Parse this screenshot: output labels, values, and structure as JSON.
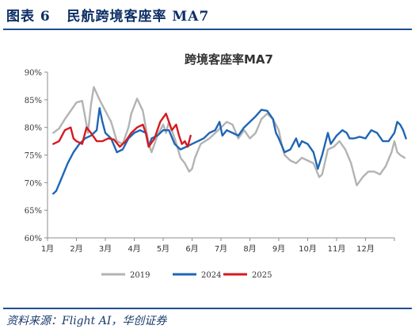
{
  "figure": {
    "label": "图表 6",
    "title": "民航跨境客座率 MA7",
    "source": "资料来源：Flight AI，华创证券"
  },
  "colors": {
    "accent": "#1f4e8c",
    "series_2019": "#b3b3b3",
    "series_2024": "#1f66b5",
    "series_2025": "#d7191f",
    "axis": "#8c8c8c"
  },
  "chart_data": {
    "type": "line",
    "title": "跨境客座率MA7",
    "xlabel": "",
    "ylabel": "",
    "x_unit": "month",
    "xlim": [
      1,
      13
    ],
    "ylim": [
      60,
      90
    ],
    "x_ticks": [
      "1月",
      "2月",
      "3月",
      "4月",
      "5月",
      "6月",
      "7月",
      "8月",
      "9月",
      "10月",
      "11月",
      "12月"
    ],
    "y_ticks": [
      "60%",
      "65%",
      "70%",
      "75%",
      "80%",
      "85%",
      "90%"
    ],
    "grid": false,
    "legend": "bottom",
    "series": [
      {
        "name": "2019",
        "color_key": "series_2019",
        "points": [
          [
            1.2,
            79
          ],
          [
            1.4,
            79.8
          ],
          [
            1.6,
            81.5
          ],
          [
            1.8,
            83
          ],
          [
            2.0,
            84.5
          ],
          [
            2.2,
            84.8
          ],
          [
            2.4,
            79
          ],
          [
            2.5,
            84
          ],
          [
            2.6,
            87.3
          ],
          [
            2.8,
            85
          ],
          [
            3.0,
            83
          ],
          [
            3.2,
            81
          ],
          [
            3.4,
            77.5
          ],
          [
            3.6,
            77
          ],
          [
            3.8,
            80
          ],
          [
            3.9,
            82.5
          ],
          [
            4.1,
            85.2
          ],
          [
            4.3,
            83
          ],
          [
            4.5,
            77
          ],
          [
            4.6,
            75.5
          ],
          [
            4.8,
            78.5
          ],
          [
            5.0,
            80.5
          ],
          [
            5.1,
            79
          ],
          [
            5.2,
            81
          ],
          [
            5.4,
            78
          ],
          [
            5.6,
            74.5
          ],
          [
            5.75,
            73.5
          ],
          [
            5.9,
            72
          ],
          [
            6.0,
            72.5
          ],
          [
            6.1,
            74.5
          ],
          [
            6.3,
            77
          ],
          [
            6.6,
            78
          ],
          [
            6.9,
            79.5
          ],
          [
            7.2,
            81
          ],
          [
            7.4,
            80.5
          ],
          [
            7.6,
            78
          ],
          [
            7.8,
            79.5
          ],
          [
            8.0,
            78
          ],
          [
            8.2,
            79
          ],
          [
            8.4,
            81.5
          ],
          [
            8.6,
            82.5
          ],
          [
            8.8,
            81.5
          ],
          [
            9.0,
            79.5
          ],
          [
            9.1,
            77
          ],
          [
            9.2,
            75
          ],
          [
            9.4,
            74
          ],
          [
            9.6,
            73.5
          ],
          [
            9.8,
            74.5
          ],
          [
            10.0,
            74
          ],
          [
            10.2,
            73.5
          ],
          [
            10.4,
            71
          ],
          [
            10.5,
            71.5
          ],
          [
            10.7,
            76
          ],
          [
            10.9,
            76.5
          ],
          [
            11.1,
            77.5
          ],
          [
            11.3,
            76
          ],
          [
            11.5,
            73.5
          ],
          [
            11.7,
            69.5
          ],
          [
            11.9,
            71
          ],
          [
            12.1,
            72
          ],
          [
            12.3,
            72
          ],
          [
            12.5,
            71.5
          ],
          [
            12.7,
            73
          ],
          [
            12.9,
            75.5
          ],
          [
            13.0,
            77.5
          ],
          [
            13.1,
            75.5
          ],
          [
            13.2,
            75
          ],
          [
            13.35,
            74.5
          ]
        ]
      },
      {
        "name": "2024",
        "color_key": "series_2024",
        "points": [
          [
            1.2,
            68
          ],
          [
            1.3,
            68.5
          ],
          [
            1.5,
            71
          ],
          [
            1.7,
            73.5
          ],
          [
            1.9,
            75.5
          ],
          [
            2.1,
            77
          ],
          [
            2.3,
            78
          ],
          [
            2.5,
            78.5
          ],
          [
            2.7,
            79.5
          ],
          [
            2.8,
            83.5
          ],
          [
            2.9,
            81
          ],
          [
            3.0,
            79
          ],
          [
            3.2,
            78
          ],
          [
            3.4,
            75.5
          ],
          [
            3.6,
            76
          ],
          [
            3.8,
            78
          ],
          [
            4.0,
            79
          ],
          [
            4.2,
            79.5
          ],
          [
            4.4,
            79
          ],
          [
            4.5,
            76.5
          ],
          [
            4.6,
            78
          ],
          [
            4.8,
            78.5
          ],
          [
            5.0,
            79.5
          ],
          [
            5.2,
            79.5
          ],
          [
            5.4,
            77
          ],
          [
            5.6,
            76
          ],
          [
            5.8,
            76.5
          ],
          [
            6.0,
            77
          ],
          [
            6.2,
            77.5
          ],
          [
            6.4,
            78
          ],
          [
            6.6,
            79
          ],
          [
            6.8,
            79.5
          ],
          [
            6.95,
            81
          ],
          [
            7.05,
            78.5
          ],
          [
            7.2,
            79.5
          ],
          [
            7.4,
            79
          ],
          [
            7.6,
            78.5
          ],
          [
            7.8,
            80
          ],
          [
            8.0,
            81
          ],
          [
            8.2,
            82
          ],
          [
            8.4,
            83.2
          ],
          [
            8.6,
            83
          ],
          [
            8.8,
            81.5
          ],
          [
            8.9,
            79
          ],
          [
            9.0,
            78
          ],
          [
            9.2,
            75.5
          ],
          [
            9.4,
            76
          ],
          [
            9.6,
            78
          ],
          [
            9.7,
            76.5
          ],
          [
            9.8,
            77.5
          ],
          [
            10.0,
            77
          ],
          [
            10.2,
            75.5
          ],
          [
            10.35,
            72.5
          ],
          [
            10.5,
            75
          ],
          [
            10.7,
            79
          ],
          [
            10.8,
            77
          ],
          [
            11.0,
            78.5
          ],
          [
            11.2,
            79.5
          ],
          [
            11.35,
            79
          ],
          [
            11.45,
            78
          ],
          [
            11.6,
            78
          ],
          [
            11.8,
            78.3
          ],
          [
            12.0,
            78
          ],
          [
            12.2,
            79.5
          ],
          [
            12.4,
            79
          ],
          [
            12.6,
            77.5
          ],
          [
            12.8,
            77.5
          ],
          [
            13.0,
            79
          ],
          [
            13.1,
            81
          ],
          [
            13.2,
            80.5
          ],
          [
            13.3,
            79.5
          ],
          [
            13.4,
            78
          ]
        ]
      },
      {
        "name": "2025",
        "color_key": "series_2025",
        "points": [
          [
            1.2,
            77
          ],
          [
            1.4,
            77.5
          ],
          [
            1.6,
            79.5
          ],
          [
            1.8,
            80
          ],
          [
            1.9,
            78
          ],
          [
            2.0,
            77.5
          ],
          [
            2.2,
            77
          ],
          [
            2.35,
            80
          ],
          [
            2.5,
            79
          ],
          [
            2.7,
            77.5
          ],
          [
            2.9,
            77.5
          ],
          [
            3.1,
            78
          ],
          [
            3.3,
            77.8
          ],
          [
            3.5,
            76.5
          ],
          [
            3.7,
            77.5
          ],
          [
            3.9,
            79
          ],
          [
            4.1,
            80
          ],
          [
            4.3,
            80.5
          ],
          [
            4.4,
            79
          ],
          [
            4.5,
            76.5
          ],
          [
            4.7,
            78
          ],
          [
            4.9,
            81
          ],
          [
            5.1,
            82.5
          ],
          [
            5.2,
            81
          ],
          [
            5.3,
            79.5
          ],
          [
            5.45,
            80.5
          ],
          [
            5.55,
            78.5
          ],
          [
            5.65,
            77
          ],
          [
            5.75,
            77.5
          ],
          [
            5.85,
            76.5
          ],
          [
            5.95,
            78.5
          ]
        ]
      }
    ]
  }
}
